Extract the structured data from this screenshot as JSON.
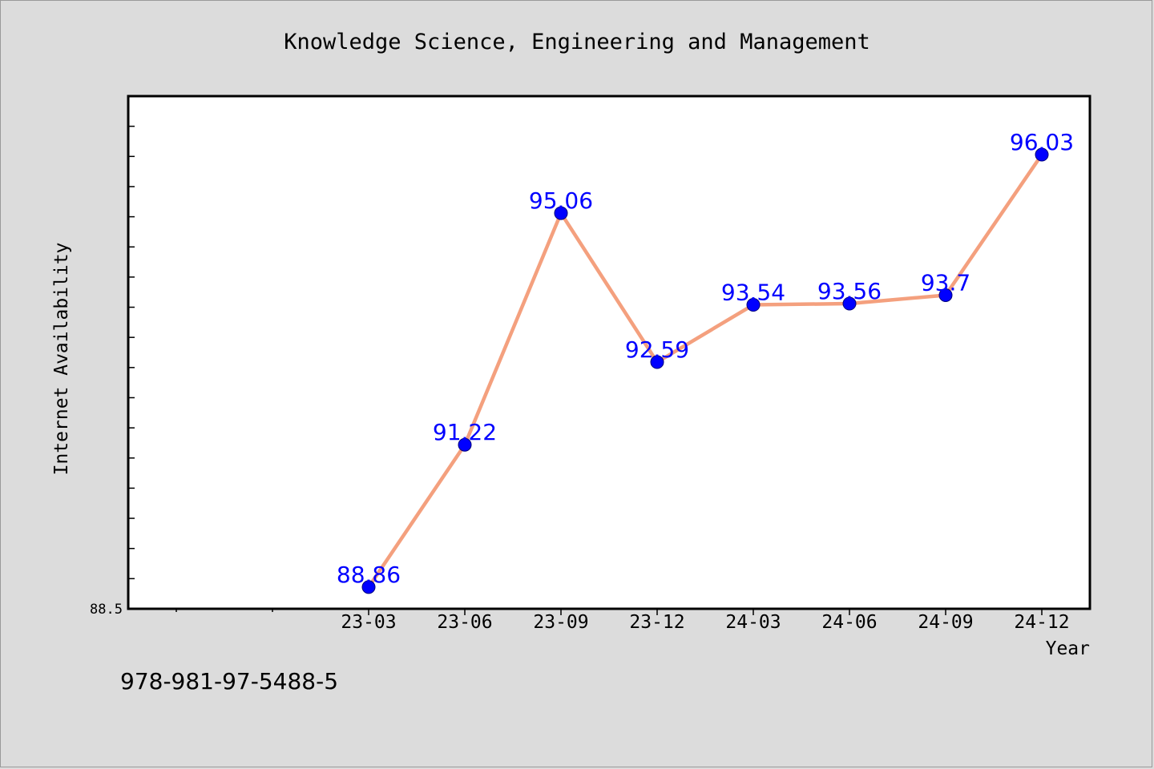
{
  "footer_text": "978-981-97-5488-5",
  "chart_data": {
    "type": "line",
    "title": "Knowledge Science, Engineering and Management",
    "xlabel": "Year",
    "ylabel": "Internet Availability",
    "categories": [
      "23-03",
      "23-06",
      "23-09",
      "23-12",
      "24-03",
      "24-06",
      "24-09",
      "24-12"
    ],
    "values": [
      88.86,
      91.22,
      95.06,
      92.59,
      93.54,
      93.56,
      93.7,
      96.03
    ],
    "data_labels": [
      "88.86",
      "91.22",
      "95.06",
      "92.59",
      "93.54",
      "93.56",
      "93.7",
      "96.03"
    ],
    "ylim": [
      88.5,
      97.0
    ],
    "y_tick_labels": [
      "88.5"
    ],
    "grid": false,
    "legend": "none",
    "colors": {
      "line": "#f4a07e",
      "marker": "#0000ff",
      "data_label": "#0000ff",
      "plot_background": "#ffffff",
      "page_background": "#dcdcdc"
    }
  }
}
